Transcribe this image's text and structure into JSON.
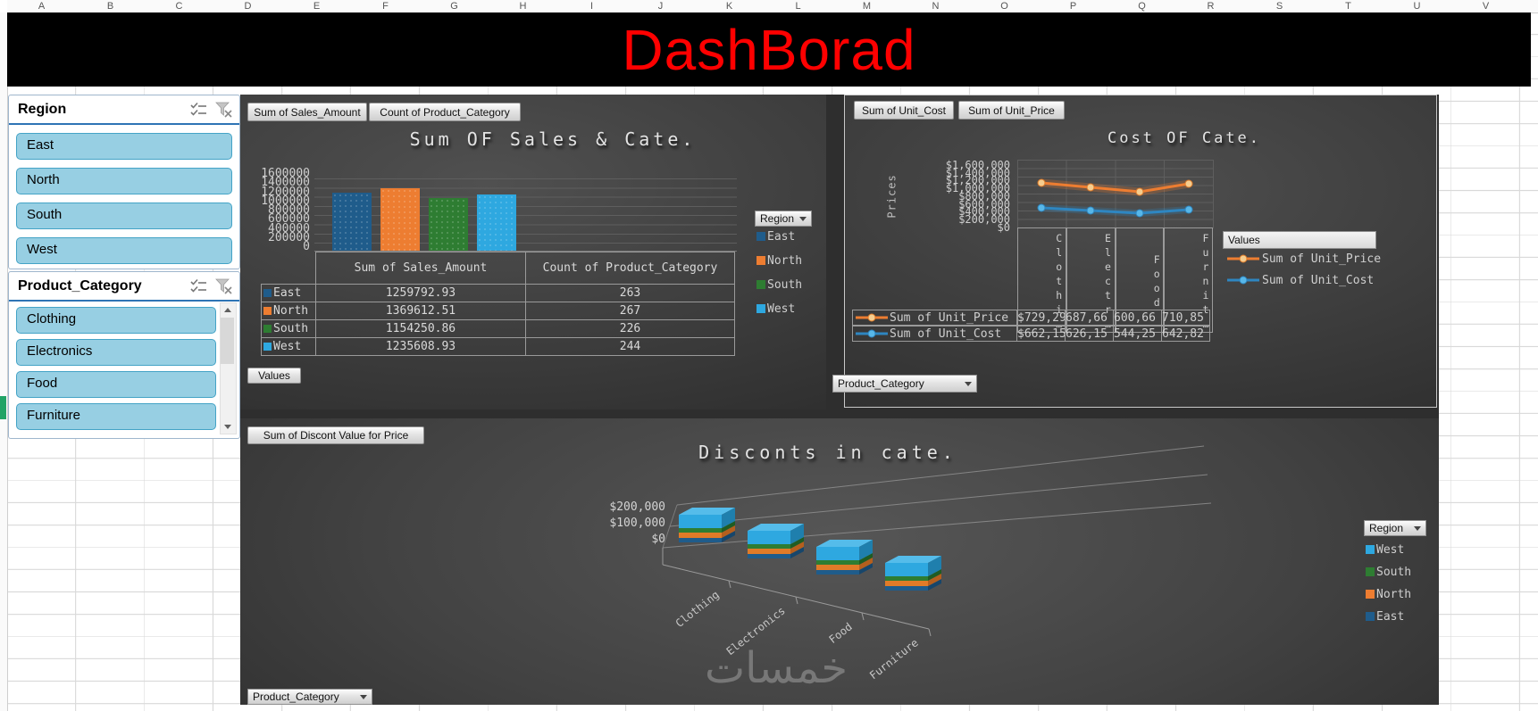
{
  "excel": {
    "column_letters": [
      "A",
      "B",
      "C",
      "D",
      "E",
      "F",
      "G",
      "H",
      "I",
      "J",
      "K",
      "L",
      "M",
      "N",
      "O",
      "P",
      "Q",
      "R",
      "S",
      "T",
      "U",
      "V"
    ]
  },
  "banner": {
    "title": "DashBorad"
  },
  "slicers": {
    "region": {
      "header": "Region",
      "items": [
        "East",
        "North",
        "South",
        "West"
      ]
    },
    "product_category": {
      "header": "Product_Category",
      "items": [
        "Clothing",
        "Electronics",
        "Food",
        "Furniture"
      ]
    }
  },
  "sales_chart": {
    "field_buttons": [
      "Sum of Sales_Amount",
      "Count of Product_Category"
    ],
    "title": "Sum OF Sales & Cate.",
    "y_labels": [
      "1600000",
      "1400000",
      "1200000",
      "1000000",
      "800000",
      "600000",
      "400000",
      "200000",
      "0"
    ],
    "values_button": "Values",
    "region_dropdown": "Region",
    "legend": [
      "East",
      "North",
      "South",
      "West"
    ],
    "table": {
      "col1": "Sum of Sales_Amount",
      "col2": "Count of Product_Category",
      "rows": [
        {
          "label": "East",
          "sales": "1259792.93",
          "count": "263"
        },
        {
          "label": "North",
          "sales": "1369612.51",
          "count": "267"
        },
        {
          "label": "South",
          "sales": "1154250.86",
          "count": "226"
        },
        {
          "label": "West",
          "sales": "1235608.93",
          "count": "244"
        }
      ]
    }
  },
  "cost_chart": {
    "field_buttons": [
      "Sum of Unit_Cost",
      "Sum of Unit_Price"
    ],
    "title": "Cost OF Cate.",
    "y_axis_title": "Prices",
    "y_labels": [
      "$1,600,000",
      "$1,400,000",
      "$1,200,000",
      "$1,000,000",
      "$800,000",
      "$600,000",
      "$400,000",
      "$200,000",
      "$0"
    ],
    "category_labels": [
      "Clothi…",
      "Electr…",
      "Food",
      "Furnit…"
    ],
    "price_row": {
      "label": "Sum of Unit_Price",
      "values": [
        "$729,29",
        "687,66",
        "600,66",
        "710,85"
      ]
    },
    "cost_row": {
      "label": "Sum of Unit_Cost",
      "values": [
        "$662,15",
        "626,15",
        "544,25",
        "642,82"
      ]
    },
    "legend_header": "Values",
    "legend": [
      "Sum of Unit_Price",
      "Sum of Unit_Cost"
    ],
    "category_dropdown": "Product_Category"
  },
  "discount_chart": {
    "field_button": "Sum of Discont Value for Price",
    "title": "Disconts in cate.",
    "y_labels": [
      "$200,000",
      "$100,000",
      "$0"
    ],
    "categories": [
      "Clothing",
      "Electronics",
      "Food",
      "Furniture"
    ],
    "region_dropdown": "Region",
    "legend": [
      "West",
      "South",
      "North",
      "East"
    ],
    "category_dropdown": "Product_Category",
    "watermark": "خمسات"
  },
  "colors": {
    "east": "#1F5C8B",
    "north": "#ED7D31",
    "south": "#2E7D32",
    "west": "#2EA8E0",
    "banner_title": "#FF0000",
    "slicer_fill": "#97CFE3",
    "slicer_border": "#44A3C6",
    "price_line": "#ED7D31",
    "cost_line": "#2E86C1"
  },
  "chart_data": [
    {
      "type": "bar",
      "title": "Sum OF Sales & Cate.",
      "categories": [
        "East",
        "North",
        "South",
        "West"
      ],
      "series": [
        {
          "name": "Sum of Sales_Amount",
          "values": [
            1259792.93,
            1369612.51,
            1154250.86,
            1235608.93
          ]
        },
        {
          "name": "Count of Product_Category",
          "values": [
            263,
            267,
            226,
            244
          ]
        }
      ],
      "ylim": [
        0,
        1600000
      ],
      "bar_colors": [
        "#1F5C8B",
        "#ED7D31",
        "#2E7D32",
        "#2EA8E0"
      ],
      "grid": true,
      "legend_position": "right"
    },
    {
      "type": "line",
      "title": "Cost OF Cate.",
      "ylabel": "Prices",
      "categories": [
        "Clothing",
        "Electronics",
        "Food",
        "Furniture"
      ],
      "series": [
        {
          "name": "Sum of Unit_Price",
          "color": "#ED7D31",
          "values": [
            729290,
            687660,
            600660,
            710850
          ]
        },
        {
          "name": "Sum of Unit_Cost",
          "color": "#2E86C1",
          "values": [
            662150,
            626150,
            544250,
            642820
          ]
        }
      ],
      "ylim": [
        0,
        1600000
      ],
      "values_estimated": true,
      "grid": true,
      "legend_position": "right"
    },
    {
      "type": "bar3d-stacked",
      "title": "Disconts in cate.",
      "categories": [
        "Clothing",
        "Electronics",
        "Food",
        "Furniture"
      ],
      "series": [
        {
          "name": "East",
          "color": "#1F5C8B",
          "values": [
            22000,
            20000,
            19000,
            21000
          ]
        },
        {
          "name": "North",
          "color": "#ED7D31",
          "values": [
            33000,
            30000,
            28000,
            31000
          ]
        },
        {
          "name": "South",
          "color": "#2E7D32",
          "values": [
            28000,
            25000,
            24000,
            26000
          ]
        },
        {
          "name": "West",
          "color": "#2EA8E0",
          "values": [
            80000,
            72000,
            70000,
            76000
          ]
        }
      ],
      "ylim": [
        0,
        200000
      ],
      "values_estimated": true,
      "legend_position": "right"
    }
  ]
}
